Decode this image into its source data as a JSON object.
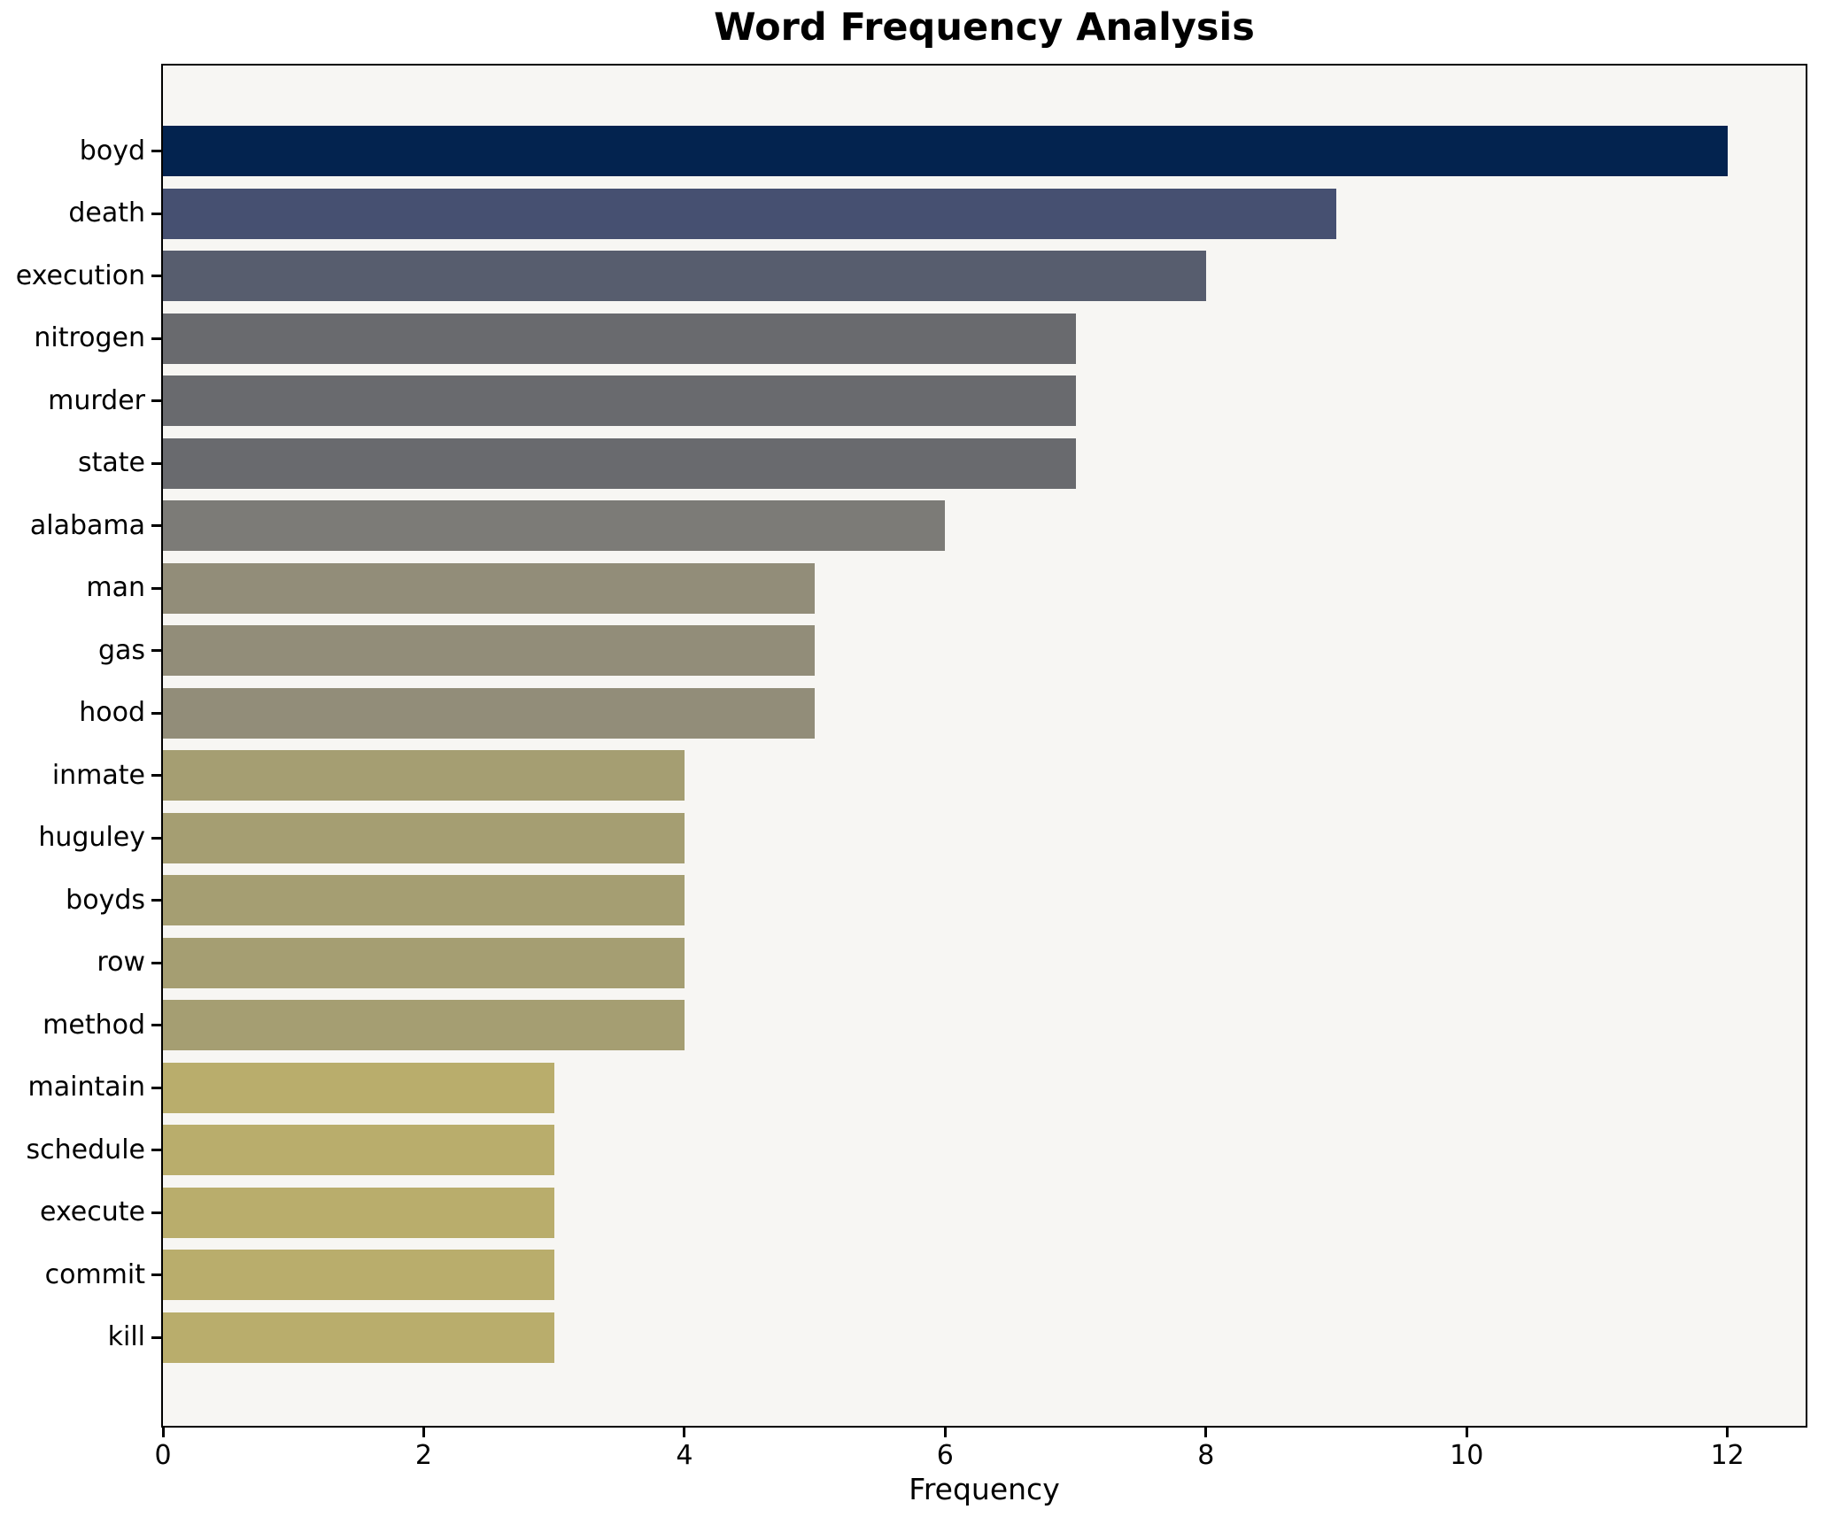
{
  "chart_data": {
    "type": "bar",
    "orientation": "horizontal",
    "title": "Word Frequency Analysis",
    "xlabel": "Frequency",
    "ylabel": "",
    "categories": [
      "boyd",
      "death",
      "execution",
      "nitrogen",
      "murder",
      "state",
      "alabama",
      "man",
      "gas",
      "hood",
      "inmate",
      "huguley",
      "boyds",
      "row",
      "method",
      "maintain",
      "schedule",
      "execute",
      "commit",
      "kill"
    ],
    "values": [
      12,
      9,
      8,
      7,
      7,
      7,
      6,
      5,
      5,
      5,
      4,
      4,
      4,
      4,
      4,
      3,
      3,
      3,
      3,
      3
    ],
    "bar_colors": [
      "#03234f",
      "#465071",
      "#575d6e",
      "#696a6e",
      "#696a6e",
      "#696a6e",
      "#7c7b77",
      "#928d79",
      "#928d79",
      "#928d79",
      "#a59e72",
      "#a59e72",
      "#a59e72",
      "#a59e72",
      "#a59e72",
      "#b9ad6c",
      "#b9ad6c",
      "#b9ad6c",
      "#b9ad6c",
      "#b9ad6c"
    ],
    "x_ticks": [
      0,
      2,
      4,
      6,
      8,
      10,
      12
    ],
    "xlim": [
      0,
      12.6
    ],
    "grid": false,
    "legend": null,
    "colors": {
      "figure_bg": "#ffffff",
      "plot_bg": "#f7f6f3",
      "axis": "#000000",
      "text": "#000000"
    }
  }
}
